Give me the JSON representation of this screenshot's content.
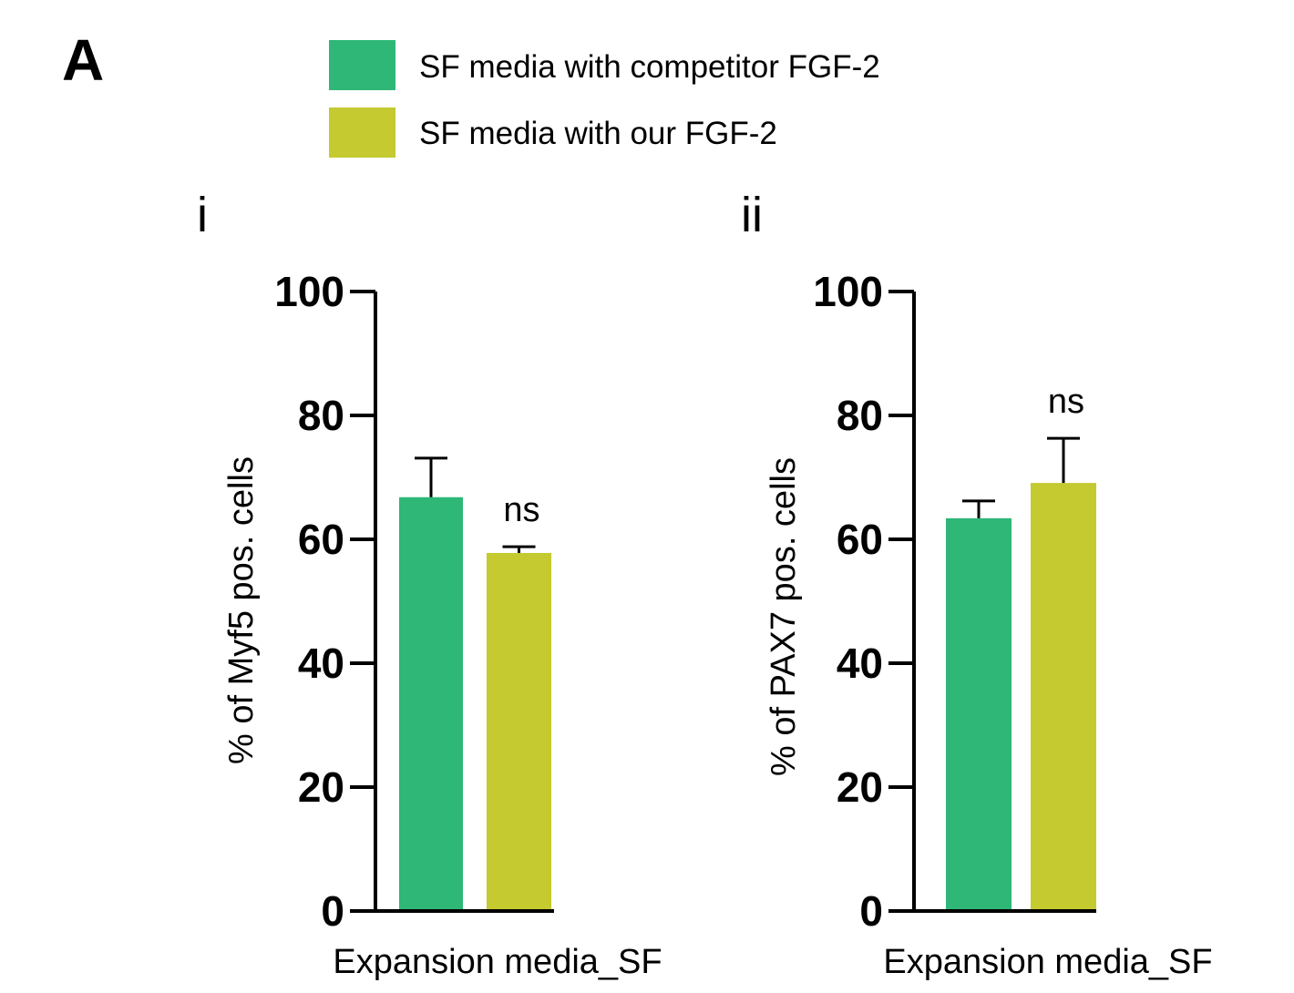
{
  "figure": {
    "panel_letter": "A",
    "legend": [
      {
        "label": "SF media with competitor FGF-2",
        "color": "#2eb777"
      },
      {
        "label": "SF media with our FGF-2",
        "color": "#c4ca2f"
      }
    ]
  },
  "chart_data": [
    {
      "type": "bar",
      "panel_label": "i",
      "title": "",
      "xlabel": "Expansion media_SF",
      "ylabel": "% of Myf5 pos. cells",
      "ylim": [
        0,
        100
      ],
      "yticks": [
        0,
        20,
        40,
        60,
        80,
        100
      ],
      "categories": [
        "Expansion media_SF"
      ],
      "series": [
        {
          "name": "SF media with competitor FGF-2",
          "color": "#2eb777",
          "values": [
            66.8
          ],
          "error": [
            6.3
          ]
        },
        {
          "name": "SF media with our FGF-2",
          "color": "#c4ca2f",
          "values": [
            57.8
          ],
          "error": [
            1.0
          ]
        }
      ],
      "annotations": [
        {
          "text": "ns",
          "series": 1
        }
      ]
    },
    {
      "type": "bar",
      "panel_label": "ii",
      "title": "",
      "xlabel": "Expansion media_SF",
      "ylabel": "% of PAX7 pos. cells",
      "ylim": [
        0,
        100
      ],
      "yticks": [
        0,
        20,
        40,
        60,
        80,
        100
      ],
      "categories": [
        "Expansion media_SF"
      ],
      "series": [
        {
          "name": "SF media with competitor FGF-2",
          "color": "#2eb777",
          "values": [
            63.4
          ],
          "error": [
            2.8
          ]
        },
        {
          "name": "SF media with our FGF-2",
          "color": "#c4ca2f",
          "values": [
            69.1
          ],
          "error": [
            7.2
          ]
        }
      ],
      "annotations": [
        {
          "text": "ns",
          "series": 1
        }
      ]
    }
  ]
}
